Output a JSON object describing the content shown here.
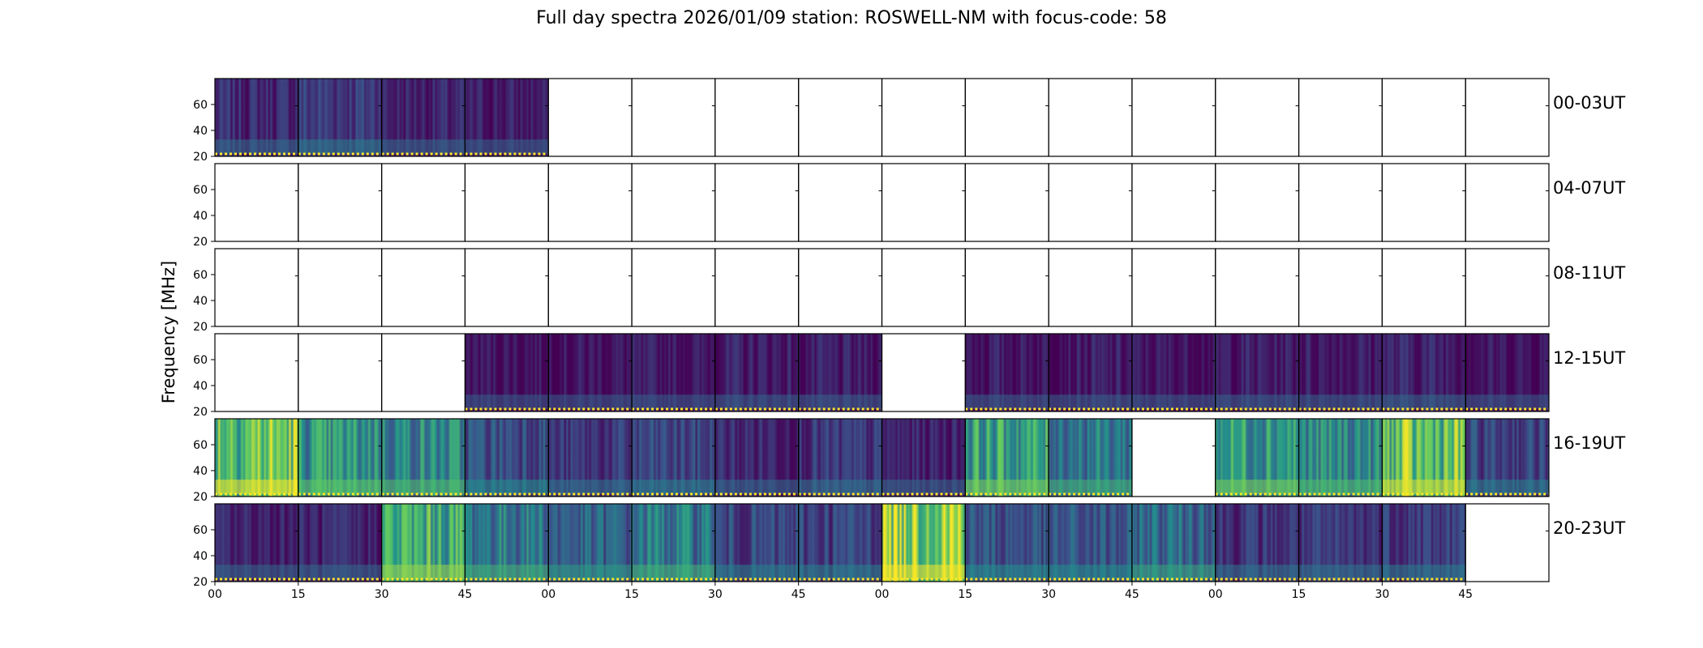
{
  "chart_data": {
    "type": "heatmap",
    "title": "Full day spectra 2026/01/09 station: ROSWELL-NM with focus-code: 58",
    "ylabel": "Frequency [MHz]",
    "ylim": [
      20,
      80
    ],
    "yticks": [
      "20",
      "40",
      "60"
    ],
    "xticks": [
      "00",
      "15",
      "30",
      "45",
      "00",
      "15",
      "30",
      "45",
      "00",
      "15",
      "30",
      "45",
      "00",
      "15",
      "30",
      "45"
    ],
    "colormap": [
      "#440154",
      "#3b528b",
      "#21918c",
      "#5ec962",
      "#fde725"
    ],
    "rows": [
      {
        "label": "00-03UT",
        "cells": [
          0.12,
          0.18,
          0.1,
          0.08,
          null,
          null,
          null,
          null,
          null,
          null,
          null,
          null,
          null,
          null,
          null,
          null
        ]
      },
      {
        "label": "04-07UT",
        "cells": [
          null,
          null,
          null,
          null,
          null,
          null,
          null,
          null,
          null,
          null,
          null,
          null,
          null,
          null,
          null,
          null
        ]
      },
      {
        "label": "08-11UT",
        "cells": [
          null,
          null,
          null,
          null,
          null,
          null,
          null,
          null,
          null,
          null,
          null,
          null,
          null,
          null,
          null,
          null
        ]
      },
      {
        "label": "12-15UT",
        "cells": [
          null,
          null,
          null,
          0.06,
          0.06,
          0.06,
          0.08,
          0.07,
          null,
          0.07,
          0.07,
          0.06,
          0.08,
          0.08,
          0.1,
          0.06
        ]
      },
      {
        "label": "16-19UT",
        "cells": [
          0.75,
          0.5,
          0.45,
          0.25,
          0.15,
          0.2,
          0.12,
          0.15,
          0.1,
          0.55,
          0.4,
          null,
          0.55,
          0.45,
          0.7,
          0.2
        ]
      },
      {
        "label": "20-23UT",
        "cells": [
          0.1,
          0.1,
          0.6,
          0.4,
          0.3,
          0.4,
          0.2,
          0.2,
          0.85,
          0.25,
          0.25,
          0.35,
          0.15,
          0.15,
          0.18,
          null
        ]
      }
    ]
  }
}
